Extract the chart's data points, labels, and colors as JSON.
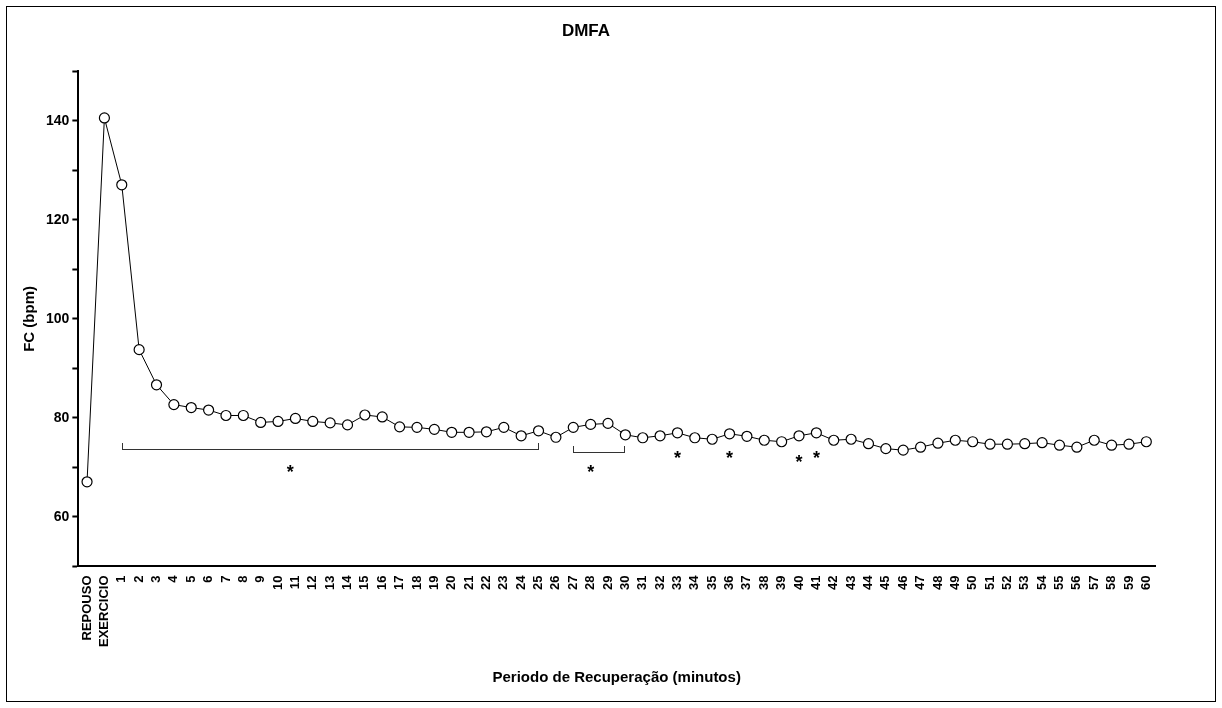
{
  "chart_data": {
    "type": "line",
    "title": "DMFA",
    "xlabel": "Periodo de Recuperação (minutos)",
    "ylabel": "FC (bpm)",
    "categories": [
      "REPOUSO",
      "EXERCICIO",
      "1",
      "2",
      "3",
      "4",
      "5",
      "6",
      "7",
      "8",
      "9",
      "10",
      "11",
      "12",
      "13",
      "14",
      "15",
      "16",
      "17",
      "18",
      "19",
      "20",
      "21",
      "22",
      "23",
      "24",
      "25",
      "26",
      "27",
      "28",
      "29",
      "30",
      "31",
      "32",
      "33",
      "34",
      "35",
      "36",
      "37",
      "38",
      "39",
      "40",
      "41",
      "42",
      "43",
      "44",
      "45",
      "46",
      "47",
      "48",
      "49",
      "50",
      "51",
      "52",
      "53",
      "54",
      "55",
      "56",
      "57",
      "58",
      "59",
      "60"
    ],
    "series": [
      {
        "color": "#000000",
        "values": [
          67.1,
          140.6,
          127.1,
          93.8,
          86.7,
          82.7,
          82.1,
          81.6,
          80.5,
          80.5,
          79.1,
          79.3,
          79.9,
          79.3,
          79.0,
          78.6,
          80.6,
          80.2,
          78.2,
          78.1,
          77.7,
          77.1,
          77.1,
          77.2,
          78.1,
          76.4,
          77.4,
          76.1,
          78.1,
          78.7,
          78.9,
          76.6,
          76.0,
          76.4,
          77.0,
          76.0,
          75.7,
          76.8,
          76.3,
          75.5,
          75.2,
          76.4,
          77.0,
          75.5,
          75.7,
          74.8,
          73.8,
          73.5,
          74.1,
          74.9,
          75.5,
          75.2,
          74.7,
          74.7,
          74.8,
          75.0,
          74.5,
          74.1,
          75.5,
          74.5,
          74.7,
          75.2
        ]
      }
    ],
    "ylim": [
      50,
      150
    ],
    "yticks": [
      {
        "value": 50,
        "label": null
      },
      60,
      {
        "value": 70,
        "label": null
      },
      80,
      {
        "value": 90,
        "label": null
      },
      100,
      {
        "value": 110,
        "label": null
      },
      120,
      {
        "value": 130,
        "label": null
      },
      140,
      {
        "value": 150,
        "label": null
      }
    ],
    "annotations": [
      "*",
      "*",
      "*",
      "*",
      "*",
      "*"
    ],
    "marker": "circle",
    "grid": false,
    "legend": false
  }
}
